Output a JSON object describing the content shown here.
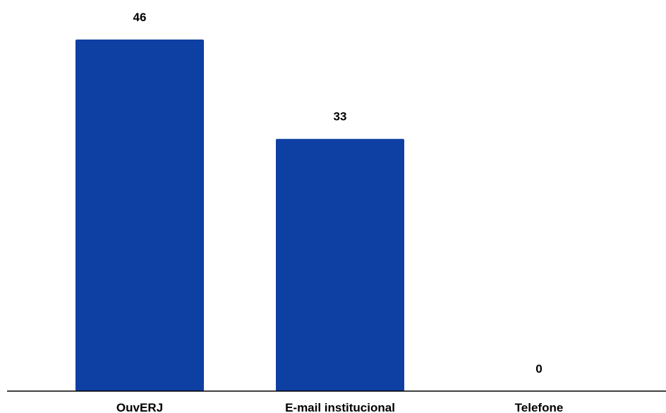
{
  "chart_data": {
    "type": "bar",
    "categories": [
      "OuvERJ",
      "E-mail institucional",
      "Telefone"
    ],
    "values": [
      46,
      33,
      0
    ],
    "data_labels": [
      "46",
      "33",
      "0"
    ],
    "title": "",
    "xlabel": "",
    "ylabel": "",
    "ylim": [
      0,
      46
    ],
    "grid": false,
    "legend": "none",
    "colors": {
      "bar": "#0e3fa3",
      "axis": "#000000",
      "text": "#000000"
    }
  }
}
